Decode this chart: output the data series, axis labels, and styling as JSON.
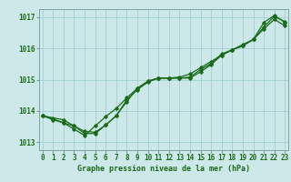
{
  "title": "Graphe pression niveau de la mer (hPa)",
  "bg_color": "#cce8e8",
  "grid_color": "#99cccc",
  "line_color": "#1a6b1a",
  "hours": [
    0,
    1,
    2,
    3,
    4,
    5,
    6,
    7,
    8,
    9,
    10,
    11,
    12,
    13,
    14,
    15,
    16,
    17,
    18,
    19,
    20,
    21,
    22,
    23
  ],
  "series1": [
    1013.85,
    1013.78,
    1013.72,
    1013.52,
    1013.28,
    1013.28,
    1013.55,
    1013.85,
    1014.3,
    1014.72,
    1014.95,
    1015.05,
    1015.05,
    1015.05,
    1015.08,
    1015.32,
    1015.52,
    1015.82,
    1015.95,
    1016.08,
    1016.28,
    1016.82,
    1017.05,
    1016.82
  ],
  "series2": [
    1013.85,
    1013.72,
    1013.62,
    1013.42,
    1013.22,
    1013.52,
    1013.82,
    1014.08,
    1014.42,
    1014.72,
    1014.95,
    1015.05,
    1015.05,
    1015.08,
    1015.18,
    1015.38,
    1015.58,
    1015.78,
    1015.95,
    1016.12,
    1016.28,
    1016.62,
    1016.92,
    1016.72
  ],
  "series3": [
    1013.85,
    1013.75,
    1013.62,
    1013.52,
    1013.35,
    1013.32,
    1013.55,
    1013.85,
    1014.35,
    1014.68,
    1014.92,
    1015.05,
    1015.05,
    1015.05,
    1015.05,
    1015.25,
    1015.48,
    1015.78,
    1015.95,
    1016.08,
    1016.28,
    1016.68,
    1017.02,
    1016.85
  ],
  "ylim": [
    1012.75,
    1017.25
  ],
  "xlim": [
    -0.3,
    23.3
  ],
  "yticks": [
    1013,
    1014,
    1015,
    1016,
    1017
  ],
  "xticks": [
    0,
    1,
    2,
    3,
    4,
    5,
    6,
    7,
    8,
    9,
    10,
    11,
    12,
    13,
    14,
    15,
    16,
    17,
    18,
    19,
    20,
    21,
    22,
    23
  ],
  "tick_fontsize": 5.5,
  "label_fontsize": 6.0
}
